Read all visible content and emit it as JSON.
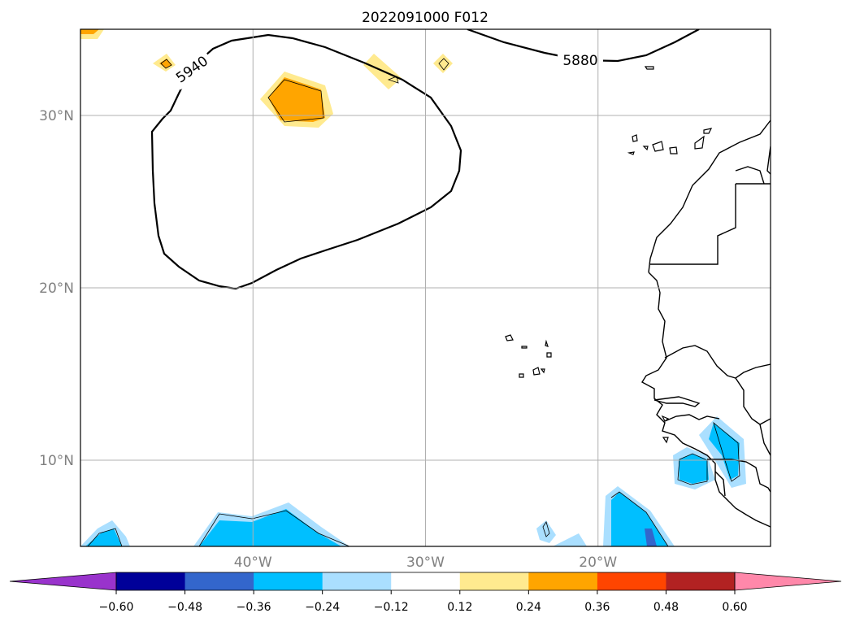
{
  "title": "2022091000 F012",
  "map": {
    "lon_range": [
      -50,
      -10
    ],
    "lat_range": [
      5,
      35
    ],
    "lon_ticks": [
      {
        "value": -40,
        "label": "40°W"
      },
      {
        "value": -30,
        "label": "30°W"
      },
      {
        "value": -20,
        "label": "20°W"
      }
    ],
    "lat_ticks": [
      {
        "value": 30,
        "label": "30°N"
      },
      {
        "value": 20,
        "label": "20°N"
      },
      {
        "value": 10,
        "label": "10°N"
      }
    ],
    "gridlines": true,
    "contour_labels": [
      "5940",
      "5880"
    ]
  },
  "colorbar": {
    "levels": [
      "−0.60",
      "−0.48",
      "−0.36",
      "−0.24",
      "−0.12",
      "0.12",
      "0.24",
      "0.36",
      "0.48",
      "0.60"
    ],
    "colors": [
      "#9933cc",
      "#000099",
      "#3366cc",
      "#00bfff",
      "#aadfff",
      "#ffffff",
      "#ffea8f",
      "#ffa500",
      "#ff4500",
      "#b22222",
      "#ff88aa"
    ],
    "extend": "both"
  }
}
